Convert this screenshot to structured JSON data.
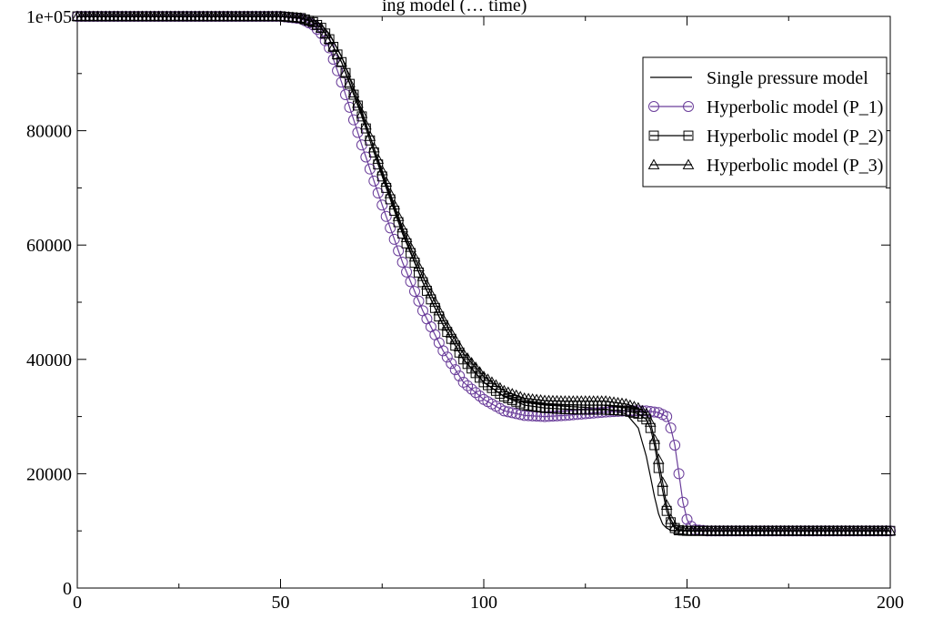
{
  "chart_data": {
    "type": "line",
    "title": "ing model (… time)",
    "xlabel": "",
    "ylabel": "",
    "xlim": [
      0,
      200
    ],
    "ylim": [
      0,
      100000
    ],
    "x_ticks": [
      0,
      50,
      100,
      150,
      200
    ],
    "x_tick_labels": [
      "0",
      "50",
      "100",
      "150",
      "200"
    ],
    "y_ticks": [
      0,
      20000,
      40000,
      60000,
      80000,
      100000
    ],
    "y_tick_labels": [
      "0",
      "20000",
      "40000",
      "60000",
      "80000",
      "1e+05"
    ],
    "grid": false,
    "legend_position": "top-right",
    "series": [
      {
        "name": "Single pressure model",
        "color": "#000000",
        "marker": "none",
        "x": [
          0,
          50,
          55,
          58,
          60,
          62,
          65,
          70,
          75,
          80,
          85,
          90,
          95,
          100,
          105,
          110,
          115,
          120,
          125,
          130,
          135,
          138,
          140,
          141,
          142,
          143,
          144,
          145,
          146,
          148,
          150,
          155,
          200
        ],
        "y": [
          100000,
          100000,
          99800,
          99300,
          98500,
          97000,
          93000,
          83500,
          72500,
          62500,
          53500,
          46000,
          40000,
          36000,
          33500,
          32500,
          32000,
          31800,
          31600,
          31300,
          30500,
          28000,
          23000,
          19500,
          16000,
          13000,
          11200,
          10500,
          10100,
          10000,
          10000,
          10000,
          10000
        ]
      },
      {
        "name": "Hyperbolic model (P_1)",
        "color": "#6a3d9a",
        "marker": "circle",
        "x": [
          0,
          50,
          55,
          58,
          60,
          62,
          65,
          70,
          75,
          80,
          85,
          90,
          95,
          100,
          105,
          110,
          115,
          120,
          125,
          130,
          135,
          140,
          143,
          145,
          146,
          147,
          148,
          149,
          150,
          151,
          152,
          155,
          200
        ],
        "y": [
          100000,
          100000,
          99600,
          98500,
          97000,
          94500,
          88500,
          77500,
          67000,
          57000,
          48500,
          41500,
          36000,
          33000,
          31000,
          30200,
          30000,
          30200,
          30500,
          30800,
          31000,
          31000,
          30700,
          30000,
          28000,
          25000,
          20000,
          15000,
          12000,
          10800,
          10200,
          10000,
          10000
        ]
      },
      {
        "name": "Hyperbolic model (P_2)",
        "color": "#000000",
        "marker": "square",
        "x": [
          0,
          50,
          55,
          58,
          60,
          62,
          65,
          70,
          75,
          80,
          85,
          90,
          95,
          100,
          105,
          110,
          115,
          120,
          125,
          130,
          135,
          138,
          140,
          141,
          142,
          143,
          144,
          145,
          146,
          147,
          148,
          150,
          200
        ],
        "y": [
          100000,
          100000,
          99700,
          99000,
          98000,
          96000,
          92000,
          82500,
          72000,
          62000,
          53500,
          46000,
          40000,
          36000,
          33500,
          32000,
          31500,
          31300,
          31200,
          31200,
          31000,
          30500,
          29500,
          28000,
          25000,
          21000,
          17000,
          13500,
          11500,
          10500,
          10100,
          10000,
          10000
        ]
      },
      {
        "name": "Hyperbolic model (P_3)",
        "color": "#000000",
        "marker": "triangle",
        "x": [
          0,
          50,
          55,
          58,
          60,
          62,
          65,
          70,
          75,
          80,
          85,
          90,
          95,
          100,
          105,
          110,
          115,
          120,
          125,
          130,
          135,
          138,
          140,
          141,
          142,
          143,
          144,
          145,
          146,
          147,
          148,
          150,
          200
        ],
        "y": [
          100000,
          100000,
          99700,
          99000,
          98000,
          96000,
          92000,
          83000,
          73000,
          63000,
          54500,
          47000,
          41000,
          37000,
          34500,
          33200,
          32800,
          32700,
          32700,
          32700,
          32200,
          31500,
          30500,
          29000,
          26000,
          22500,
          18500,
          14500,
          12000,
          10800,
          10200,
          10000,
          10000
        ]
      }
    ]
  }
}
